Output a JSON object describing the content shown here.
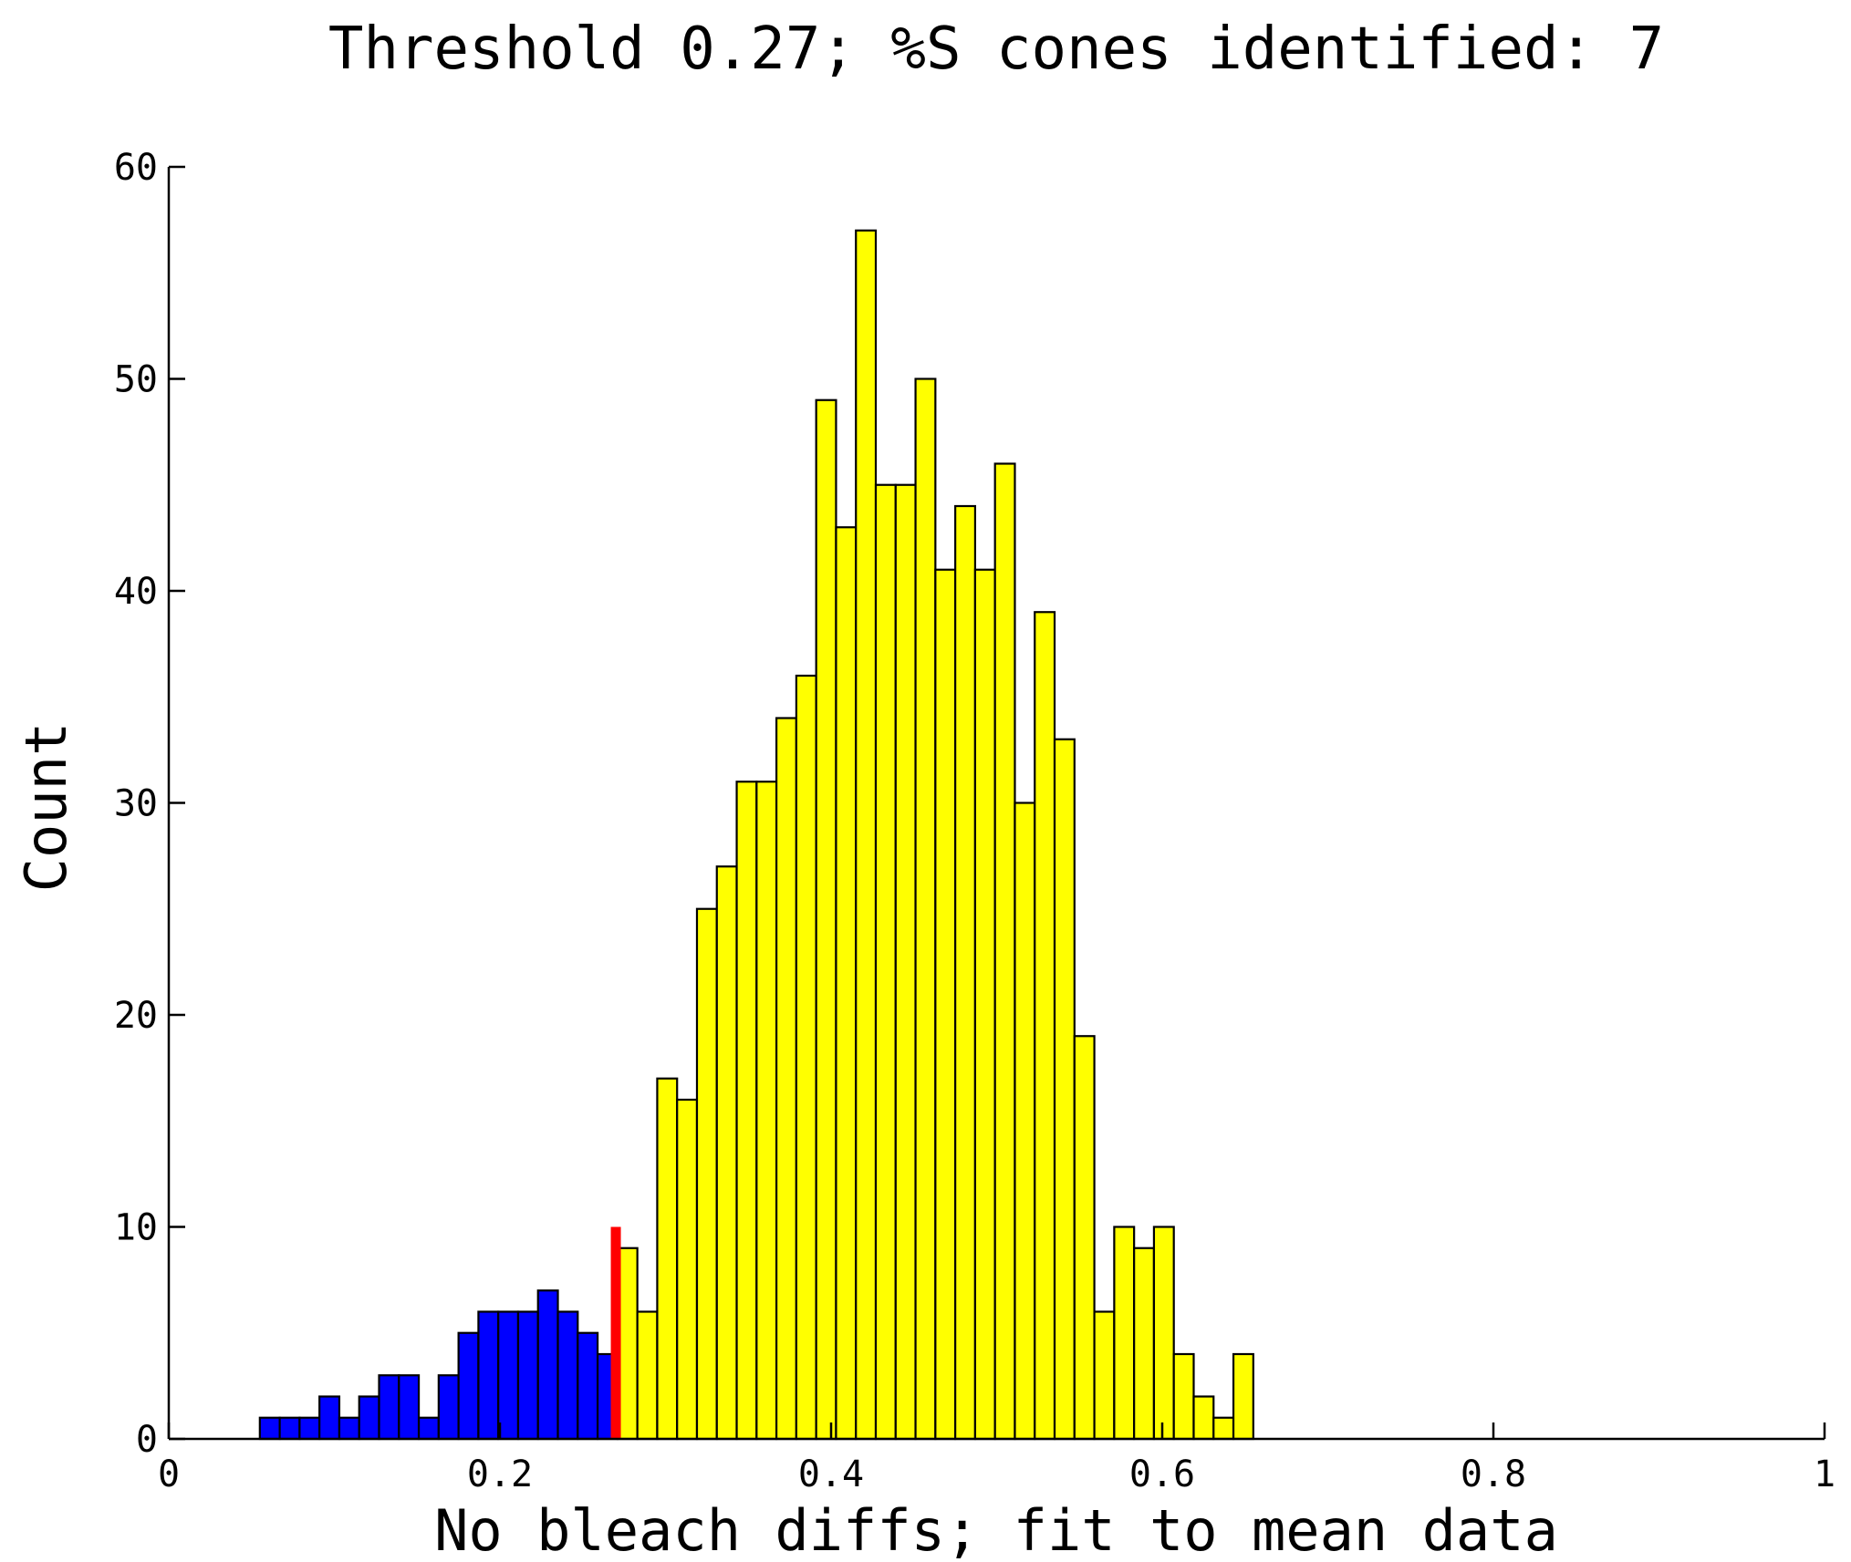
{
  "chart_data": {
    "type": "bar",
    "title": "Threshold 0.27; %S cones identified: 7",
    "xlabel": "No bleach diffs; fit to mean data",
    "ylabel": "Count",
    "xlim": [
      0,
      1
    ],
    "ylim": [
      0,
      60
    ],
    "x_ticks": [
      "0",
      "0.2",
      "0.4",
      "0.6",
      "0.8",
      "1"
    ],
    "y_ticks": [
      "0",
      "10",
      "20",
      "30",
      "40",
      "50",
      "60"
    ],
    "bin_start": 0.055,
    "bin_width": 0.012,
    "threshold": 0.27,
    "threshold_marker_height": 10,
    "colors": {
      "below_threshold": "#0000ff",
      "above_threshold": "#ffff00",
      "threshold": "#ff0000"
    },
    "series": [
      {
        "name": "below threshold",
        "values": [
          1,
          1,
          1,
          2,
          1,
          2,
          3,
          3,
          1,
          3,
          5,
          6,
          6,
          6,
          7,
          6,
          5,
          4
        ]
      },
      {
        "name": "above threshold",
        "values": [
          9,
          6,
          17,
          16,
          25,
          27,
          31,
          31,
          34,
          36,
          49,
          43,
          57,
          45,
          45,
          50,
          41,
          44,
          41,
          46,
          30,
          39,
          33,
          19,
          6,
          10,
          9,
          10,
          4,
          2,
          1,
          4
        ]
      }
    ]
  }
}
